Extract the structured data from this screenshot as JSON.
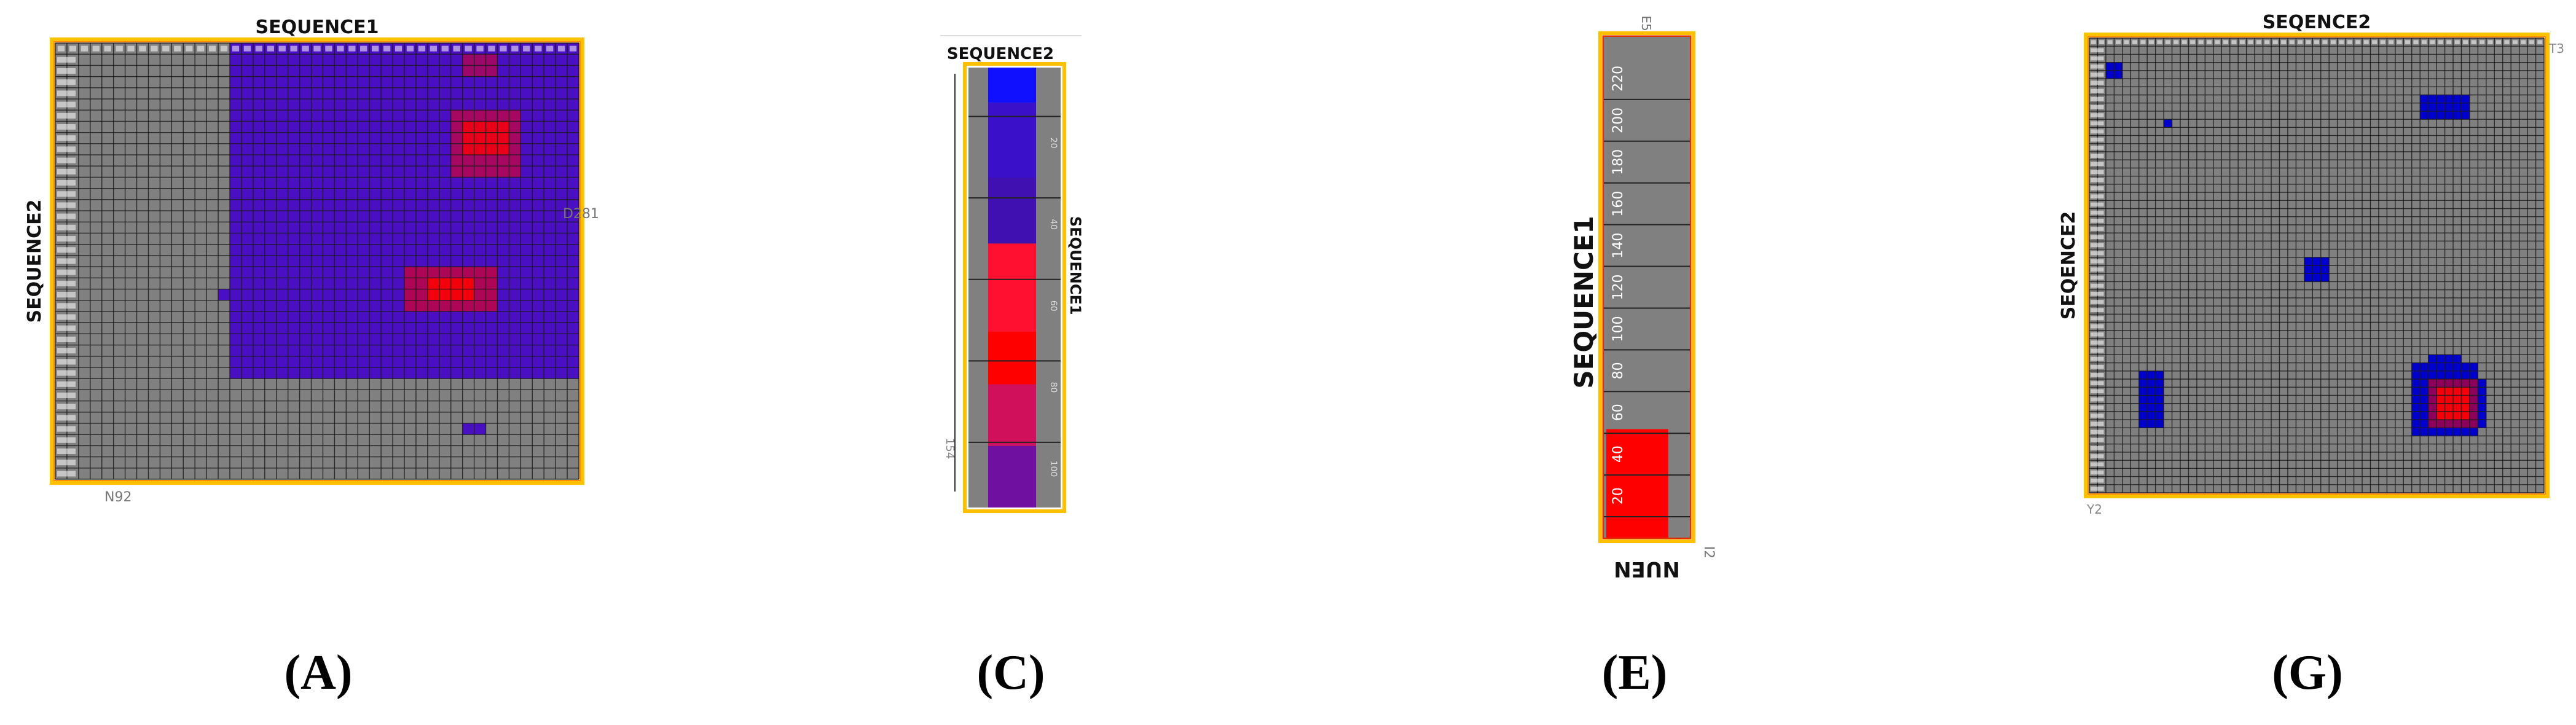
{
  "panels": [
    {
      "id": "A",
      "caption": "(A)",
      "title": "SEQUENCE1",
      "ylabel": "SEQUENCE2",
      "corner_labels": {
        "right": "D281",
        "bottom": "N92"
      }
    },
    {
      "id": "C",
      "caption": "(C)",
      "title": "SEQUENCE2",
      "ylabel": "SEQUENCE1",
      "tick_labels": [
        "20",
        "40",
        "60",
        "80",
        "100"
      ],
      "corner_labels": {
        "left": "154"
      }
    },
    {
      "id": "E",
      "caption": "(E)",
      "ylabel": "SEQUENCE1",
      "tick_labels": [
        "20",
        "40",
        "60",
        "80",
        "100",
        "120",
        "140",
        "160",
        "180",
        "200",
        "220"
      ],
      "bottom_text": "ÑUEŃ",
      "corner_labels": {
        "top": "E5",
        "bottom": "I2"
      }
    },
    {
      "id": "G",
      "caption": "(G)",
      "title": "SEQENCE2",
      "ylabel": "SEQENCE2",
      "corner_labels": {
        "bottom": "Y2",
        "right": "T3"
      }
    }
  ],
  "colors": {
    "grid_bg": "#808080",
    "grid_line": "#1a1a1a",
    "frame_outer": "#ffc000",
    "frame_inner": "#ff8c00",
    "blue": "#0000cc",
    "purple": "#4a0fc2",
    "red": "#ff0000"
  },
  "chart_data": [
    {
      "type": "heatmap",
      "panel": "A",
      "title": "SEQUENCE1",
      "ylabel": "SEQUENCE2",
      "grid_cols": 45,
      "grid_rows": 39,
      "regions": [
        {
          "c0": 15,
          "r0": 0,
          "c1": 45,
          "r1": 30,
          "color": "purple"
        },
        {
          "c0": 35,
          "r0": 1,
          "c1": 38,
          "r1": 3,
          "color": "red",
          "alpha": 0.45
        },
        {
          "c0": 34,
          "r0": 6,
          "c1": 40,
          "r1": 12,
          "color": "red",
          "alpha": 0.5
        },
        {
          "c0": 35,
          "r0": 7,
          "c1": 39,
          "r1": 10,
          "color": "red",
          "alpha": 0.75
        },
        {
          "c0": 30,
          "r0": 20,
          "c1": 38,
          "r1": 24,
          "color": "red",
          "alpha": 0.55
        },
        {
          "c0": 32,
          "r0": 21,
          "c1": 36,
          "r1": 23,
          "color": "red",
          "alpha": 0.85
        },
        {
          "c0": 14,
          "r0": 22,
          "c1": 15,
          "r1": 23,
          "color": "purple"
        },
        {
          "c0": 35,
          "r0": 34,
          "c1": 37,
          "r1": 35,
          "color": "purple"
        }
      ]
    },
    {
      "type": "heatmap",
      "panel": "C",
      "title": "SEQUENCE2",
      "ylabel": "SEQUENCE1",
      "bands": [
        {
          "from": 0,
          "to": 0.08,
          "color": "#1010ff"
        },
        {
          "from": 0.08,
          "to": 0.25,
          "color": "#3a10c8"
        },
        {
          "from": 0.25,
          "to": 0.4,
          "color": "#4010b0"
        },
        {
          "from": 0.4,
          "to": 0.6,
          "color": "#ff1030"
        },
        {
          "from": 0.6,
          "to": 0.72,
          "color": "#ff0000"
        },
        {
          "from": 0.72,
          "to": 0.86,
          "color": "#d0105a"
        },
        {
          "from": 0.86,
          "to": 1.0,
          "color": "#7010a0"
        }
      ]
    },
    {
      "type": "heatmap",
      "panel": "E",
      "ylabel": "SEQUENCE1",
      "tick_values": [
        20,
        40,
        60,
        80,
        100,
        120,
        140,
        160,
        180,
        200,
        220
      ],
      "red_block": {
        "from": 0,
        "to": 52,
        "color": "red"
      }
    },
    {
      "type": "heatmap",
      "panel": "G",
      "title": "SEQENCE2",
      "ylabel": "SEQENCE2",
      "grid_cols": 55,
      "grid_rows": 56,
      "regions": [
        {
          "c0": 2,
          "r0": 3,
          "c1": 4,
          "r1": 5,
          "color": "blue"
        },
        {
          "c0": 9,
          "r0": 10,
          "c1": 10,
          "r1": 11,
          "color": "blue"
        },
        {
          "c0": 40,
          "r0": 7,
          "c1": 46,
          "r1": 10,
          "color": "blue"
        },
        {
          "c0": 26,
          "r0": 27,
          "c1": 29,
          "r1": 30,
          "color": "blue"
        },
        {
          "c0": 6,
          "r0": 41,
          "c1": 9,
          "r1": 48,
          "color": "blue"
        },
        {
          "c0": 39,
          "r0": 40,
          "c1": 47,
          "r1": 49,
          "color": "blue"
        },
        {
          "c0": 41,
          "r0": 39,
          "c1": 45,
          "r1": 40,
          "color": "blue"
        },
        {
          "c0": 47,
          "r0": 42,
          "c1": 48,
          "r1": 48,
          "color": "blue"
        },
        {
          "c0": 41,
          "r0": 42,
          "c1": 47,
          "r1": 48,
          "color": "red",
          "alpha": 0.55
        },
        {
          "c0": 42,
          "r0": 43,
          "c1": 46,
          "r1": 47,
          "color": "red",
          "alpha": 0.9
        }
      ]
    }
  ]
}
